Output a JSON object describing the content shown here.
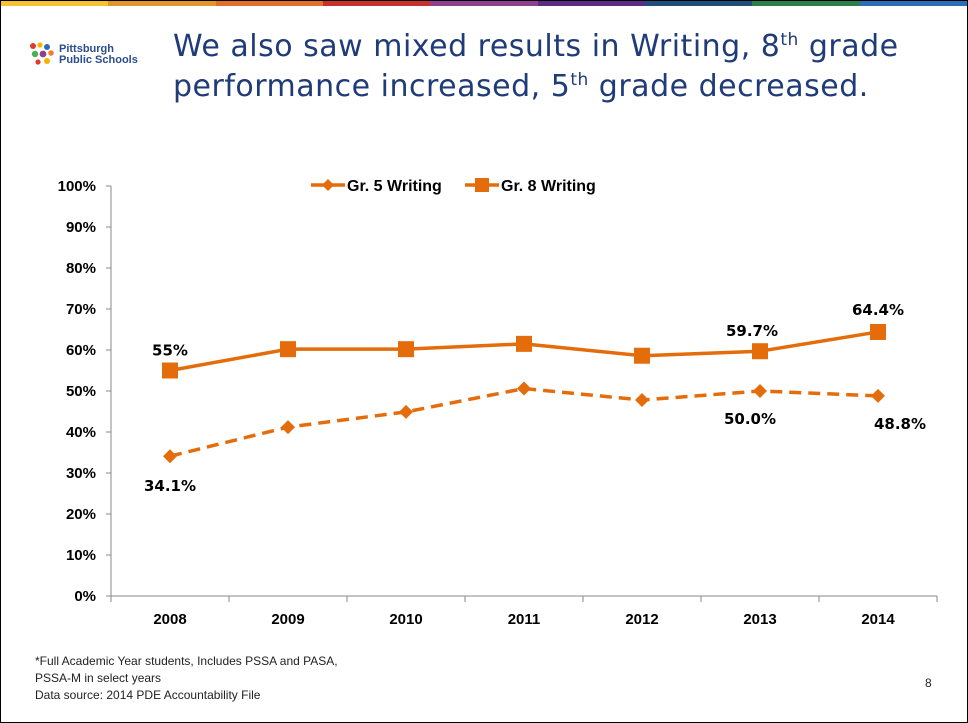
{
  "slide": {
    "title_parts": {
      "p1": "We also saw mixed results in Writing, 8",
      "sup1": "th",
      "p2": " grade performance increased, 5",
      "sup2": "th",
      "p3": " grade decreased."
    },
    "logo": {
      "line1": "Pittsburgh",
      "line2": "Public Schools"
    },
    "footnote": {
      "line1": "*Full Academic Year students, Includes PSSA and PASA,",
      "line2": "PSSA-M in select years",
      "line3": "Data source: 2014 PDE Accountability File"
    },
    "page_number": "8",
    "top_bar_colors": [
      "#f4c430",
      "#e0972a",
      "#e0702a",
      "#c8312e",
      "#8e3f8e",
      "#5b2d82",
      "#1f4e7a",
      "#2e7d4a",
      "#2a6fb5"
    ],
    "logo_colors": [
      "#e03b2e",
      "#f4b400",
      "#2a6fb5",
      "#4caf50",
      "#8e3f8e",
      "#f08030"
    ]
  },
  "chart_data": {
    "type": "line",
    "title": "",
    "xlabel": "",
    "ylabel": "",
    "categories": [
      "2008",
      "2009",
      "2010",
      "2011",
      "2012",
      "2013",
      "2014"
    ],
    "ylim": [
      0,
      100
    ],
    "yticks": [
      "0%",
      "10%",
      "20%",
      "30%",
      "40%",
      "50%",
      "60%",
      "70%",
      "80%",
      "90%",
      "100%"
    ],
    "grid": false,
    "legend_position": "top",
    "series_color": "#e46c0a",
    "series": [
      {
        "name": "Gr. 5 Writing",
        "marker": "diamond",
        "line_style": "dashed",
        "values": [
          34.1,
          41.2,
          44.9,
          50.6,
          47.8,
          50.0,
          48.8
        ],
        "data_labels": [
          "34.1%",
          "",
          "",
          "",
          "",
          "50.0%",
          "48.8%"
        ]
      },
      {
        "name": "Gr. 8 Writing",
        "marker": "square",
        "line_style": "solid",
        "values": [
          55,
          60.2,
          60.2,
          61.5,
          58.6,
          59.7,
          64.4
        ],
        "data_labels": [
          "55%",
          "",
          "",
          "",
          "",
          "59.7%",
          "64.4%"
        ]
      }
    ]
  }
}
